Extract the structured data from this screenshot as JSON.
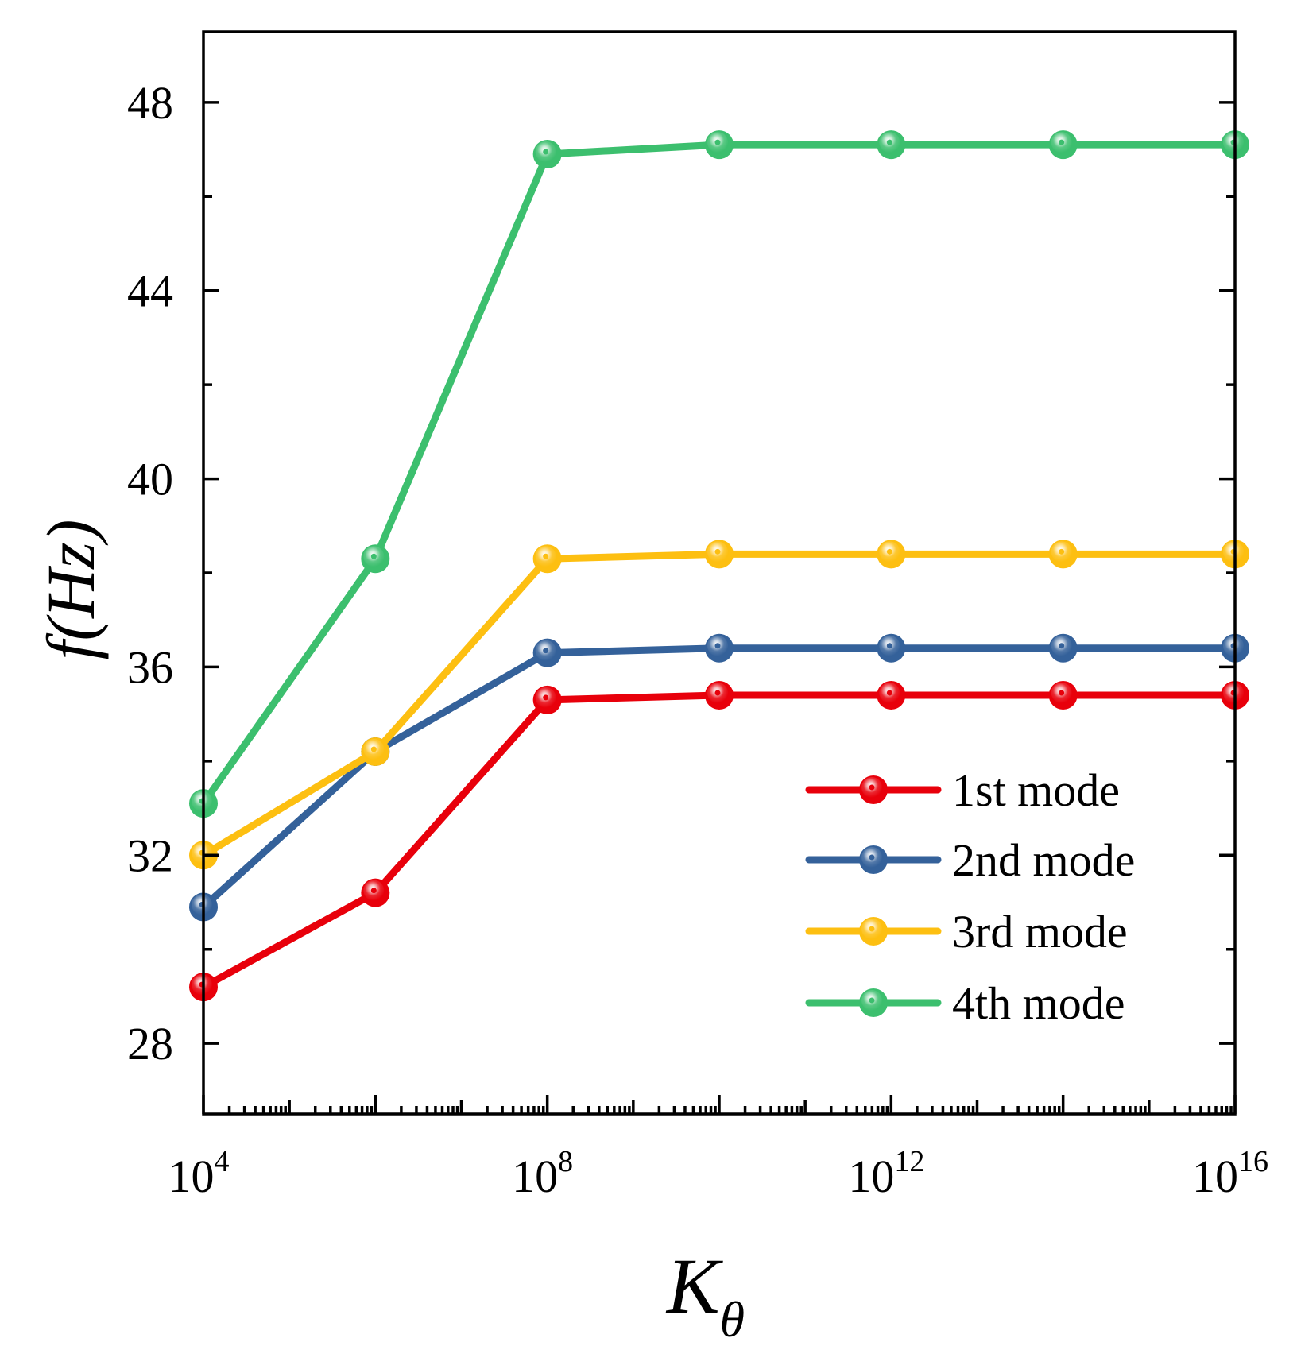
{
  "chart_data": {
    "type": "line",
    "title": "",
    "xlabel": "K",
    "xlabel_subscript": "θ",
    "ylabel": "f(Hz)",
    "xscale": "log",
    "xlim": [
      10000,
      10000000000000000
    ],
    "ylim": [
      26.5,
      49.5
    ],
    "x": [
      10000,
      1000000,
      100000000,
      10000000000,
      1000000000000,
      100000000000000,
      10000000000000000
    ],
    "x_tick_labels": [
      {
        "base": "10",
        "exp": "4",
        "value": 10000
      },
      {
        "base": "10",
        "exp": "8",
        "value": 100000000
      },
      {
        "base": "10",
        "exp": "12",
        "value": 1000000000000
      },
      {
        "base": "10",
        "exp": "16",
        "value": 10000000000000000
      }
    ],
    "y_ticks": [
      {
        "label": "28",
        "value": 28
      },
      {
        "label": "32",
        "value": 32
      },
      {
        "label": "36",
        "value": 36
      },
      {
        "label": "40",
        "value": 40
      },
      {
        "label": "44",
        "value": 44
      },
      {
        "label": "48",
        "value": 48
      }
    ],
    "y_minor_ticks": [
      30,
      34,
      38,
      42,
      46
    ],
    "grid": false,
    "legend_position": "bottom-right",
    "series": [
      {
        "name": "1st mode",
        "color": "#e8000b",
        "values": [
          29.2,
          31.2,
          35.3,
          35.4,
          35.4,
          35.4,
          35.4
        ]
      },
      {
        "name": "2nd mode",
        "color": "#34619a",
        "values": [
          30.9,
          34.2,
          36.3,
          36.4,
          36.4,
          36.4,
          36.4
        ]
      },
      {
        "name": "3rd mode",
        "color": "#fdbf11",
        "values": [
          32.0,
          34.2,
          38.3,
          38.4,
          38.4,
          38.4,
          38.4
        ]
      },
      {
        "name": "4th mode",
        "color": "#3cbf6e",
        "values": [
          33.1,
          38.3,
          46.9,
          47.1,
          47.1,
          47.1,
          47.1
        ]
      }
    ]
  }
}
